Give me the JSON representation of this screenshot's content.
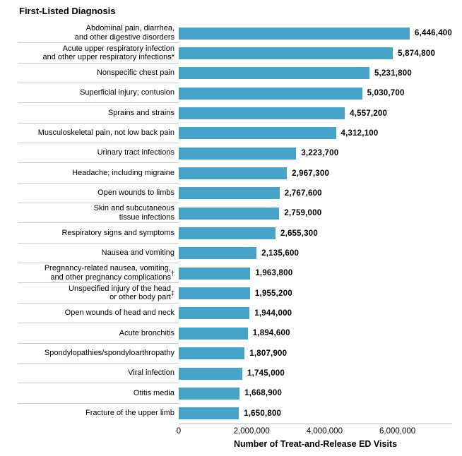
{
  "chart_data": {
    "type": "bar",
    "orientation": "horizontal",
    "title": "First-Listed Diagnosis",
    "xlabel": "Number of Treat-and-Release ED Visits",
    "xlim": [
      0,
      7500000
    ],
    "xticks": [
      0,
      2000000,
      4000000,
      6000000
    ],
    "xtick_labels": [
      "0",
      "2,000,000",
      "4,000,000",
      "6,000,000"
    ],
    "grid": false,
    "legend": "none",
    "bar_color": "#48a3c8",
    "separator_color": "#cbcbcb",
    "axis_line_color": "#bdbdbd",
    "categories": [
      "Abdominal pain, diarrhea,\nand other digestive disorders",
      "Acute upper respiratory infection\nand other upper respiratory infections*",
      "Nonspecific chest pain",
      "Superficial injury; contusion",
      "Sprains and strains",
      "Musculoskeletal pain, not low back pain",
      "Urinary tract infections",
      "Headache; including migraine",
      "Open wounds to limbs",
      "Skin and subcutaneous\ntissue infections",
      "Respiratory signs and symptoms",
      "Nausea and vomiting",
      "Pregnancy-related nausea, vomiting,\nand other pregnancy complications†",
      "Unspecified injury of the head\nor other body part‡",
      "Open wounds of head and neck",
      "Acute bronchitis",
      "Spondylopathies/spondyloarthropathy",
      "Viral infection",
      "Otitis media",
      "Fracture of the upper limb"
    ],
    "values": [
      6446400,
      5874800,
      5231800,
      5030700,
      4557200,
      4312100,
      3223700,
      2967300,
      2767600,
      2759000,
      2655300,
      2135600,
      1963800,
      1955200,
      1944000,
      1894600,
      1807900,
      1745000,
      1668900,
      1650800
    ],
    "value_labels": [
      "6,446,400",
      "5,874,800",
      "5,231,800",
      "5,030,700",
      "4,557,200",
      "4,312,100",
      "3,223,700",
      "2,967,300",
      "2,767,600",
      "2,759,000",
      "2,655,300",
      "2,135,600",
      "1,963,800",
      "1,955,200",
      "1,944,000",
      "1,894,600",
      "1,807,900",
      "1,745,000",
      "1,668,900",
      "1,650,800"
    ]
  }
}
